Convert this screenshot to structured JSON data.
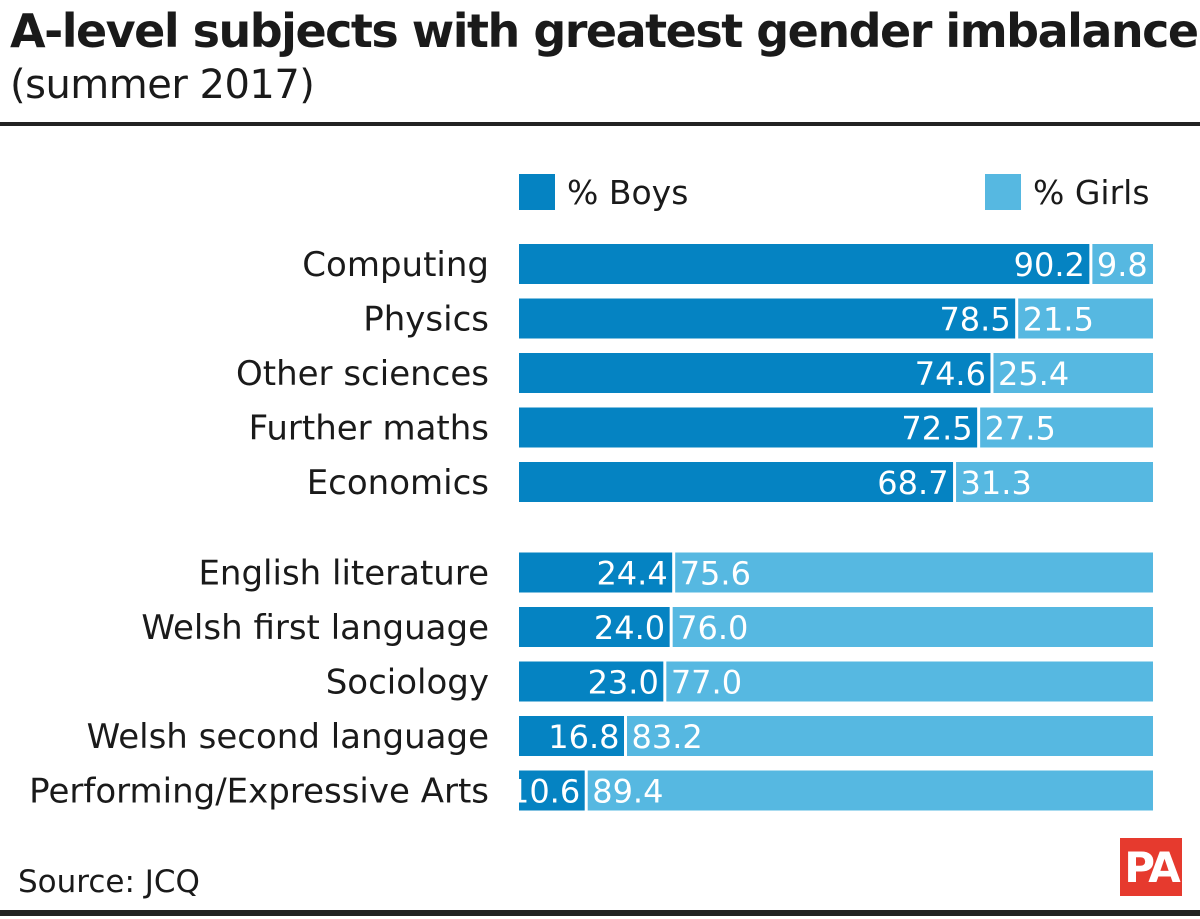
{
  "title": "A-level subjects with greatest gender imbalance",
  "subtitle": "(summer 2017)",
  "source": "Source: JCQ",
  "logo_text": "PA",
  "colors": {
    "boys": "#0583c2",
    "girls": "#56b8e1",
    "logo": "#e63a2e",
    "text": "#1a1a1a",
    "rule": "#222222"
  },
  "legend": [
    {
      "label": "% Boys",
      "color": "#0583c2"
    },
    {
      "label": "% Girls",
      "color": "#56b8e1"
    }
  ],
  "chart_data": {
    "type": "bar",
    "orientation": "horizontal",
    "stacked": true,
    "stack_total": 100,
    "legend_position": "top",
    "grid": false,
    "categories": [
      "Computing",
      "Physics",
      "Other sciences",
      "Further maths",
      "Economics",
      "English literature",
      "Welsh first language",
      "Sociology",
      "Welsh second language",
      "Performing/Expressive Arts"
    ],
    "series": [
      {
        "name": "% Boys",
        "values": [
          90.2,
          78.5,
          74.6,
          72.5,
          68.7,
          24.4,
          24.0,
          23.0,
          16.8,
          10.6
        ],
        "labels": [
          "90.2",
          "78.5",
          "74.6",
          "72.5",
          "68.7",
          "24.4",
          "24.0",
          "23.0",
          "16.8",
          "10.6"
        ]
      },
      {
        "name": "% Girls",
        "values": [
          9.8,
          21.5,
          25.4,
          27.5,
          31.3,
          75.6,
          76.0,
          77.0,
          83.2,
          89.4
        ],
        "labels": [
          "9.8",
          "21.5",
          "25.4",
          "27.5",
          "31.3",
          "75.6",
          "76.0",
          "77.0",
          "83.2",
          "89.4"
        ]
      }
    ],
    "groups": [
      {
        "name": "",
        "categories": [
          "Computing",
          "Physics",
          "Other sciences",
          "Further maths",
          "Economics"
        ]
      },
      {
        "name": "",
        "categories": [
          "English literature",
          "Welsh first language",
          "Sociology",
          "Welsh second language",
          "Performing/Expressive Arts"
        ]
      }
    ]
  }
}
